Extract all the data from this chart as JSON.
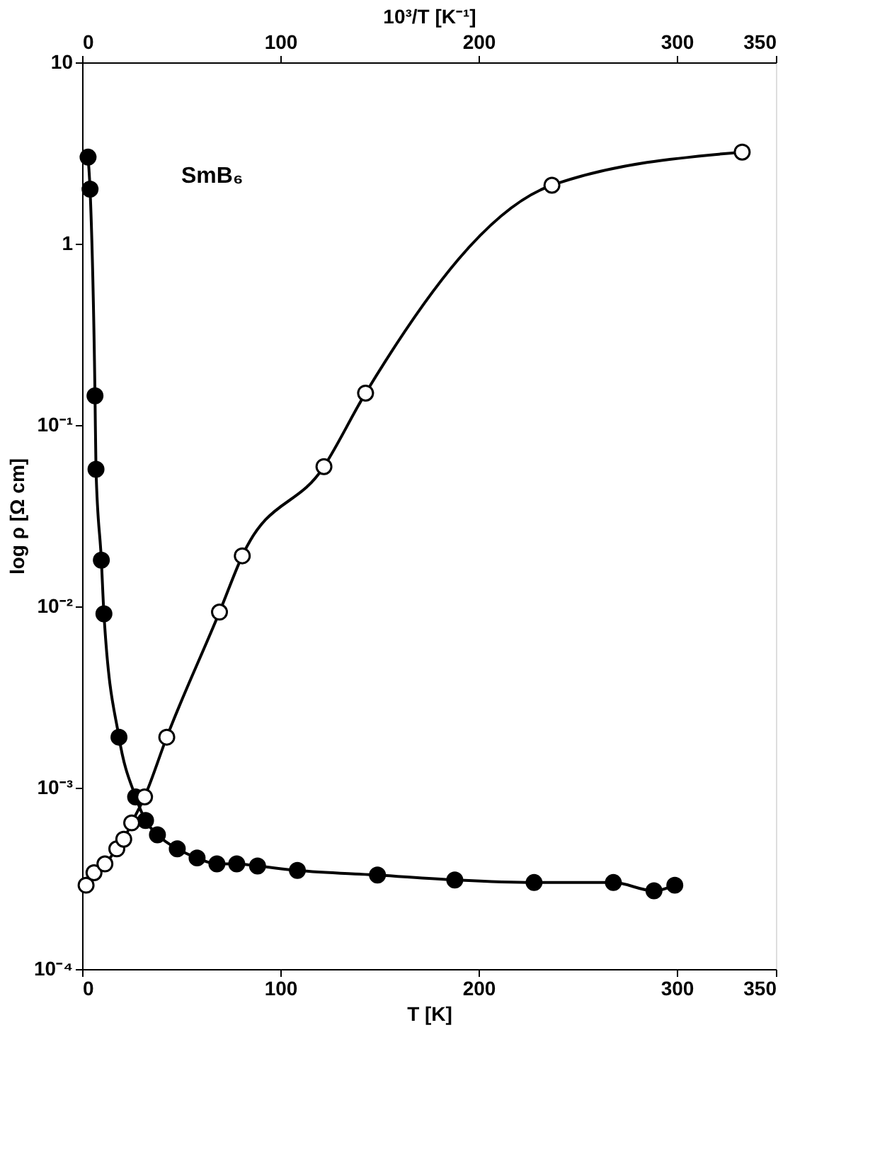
{
  "chart_data": {
    "type": "line",
    "xlabel": "T [K]",
    "x2label": "10³/T [K⁻¹]",
    "ylabel": "log ρ [Ω cm]",
    "annotations": [
      "SmB₆"
    ],
    "xlim": [
      0,
      350
    ],
    "xticks": [
      0,
      100,
      200,
      300,
      350
    ],
    "x2lim": [
      0,
      350
    ],
    "x2ticks": [
      0,
      100,
      200,
      300,
      350
    ],
    "ylim": [
      0.0001,
      10
    ],
    "log": true,
    "yticks": [
      {
        "value": 0.0001,
        "label": "10⁻⁴"
      },
      {
        "value": 0.001,
        "label": "10⁻³"
      },
      {
        "value": 0.01,
        "label": "10⁻²"
      },
      {
        "value": 0.1,
        "label": "10⁻¹"
      },
      1,
      10
    ],
    "grid": false,
    "marker": "circle",
    "line_style": "solid",
    "series": [
      {
        "color": "#000000",
        "x": [
          3,
          4,
          6.5,
          7,
          9.7,
          11,
          18.6,
          27,
          32,
          38,
          48,
          58,
          68,
          78,
          88.5,
          108.6,
          149,
          188,
          228,
          268,
          288.5,
          299
        ],
        "values": [
          3.0,
          2.0,
          0.145,
          0.057,
          0.018,
          0.0091,
          0.0019,
          0.00089,
          0.00066,
          0.00055,
          0.00046,
          0.00041,
          0.00038,
          0.00038,
          0.00037,
          0.00035,
          0.00033,
          0.00031,
          0.0003,
          0.0003,
          0.00027,
          0.00029
        ]
      },
      {
        "color": "#000000",
        "axis": "x2",
        "x": [
          2,
          6,
          11.5,
          17.5,
          21,
          25,
          31.5,
          42.7,
          69.3,
          80.8,
          122,
          143,
          237,
          333
        ],
        "values": [
          0.00029,
          0.00034,
          0.00038,
          0.00046,
          0.00052,
          0.00064,
          0.00089,
          0.0019,
          0.0093,
          0.019,
          0.059,
          0.15,
          2.1,
          3.2
        ]
      }
    ]
  }
}
